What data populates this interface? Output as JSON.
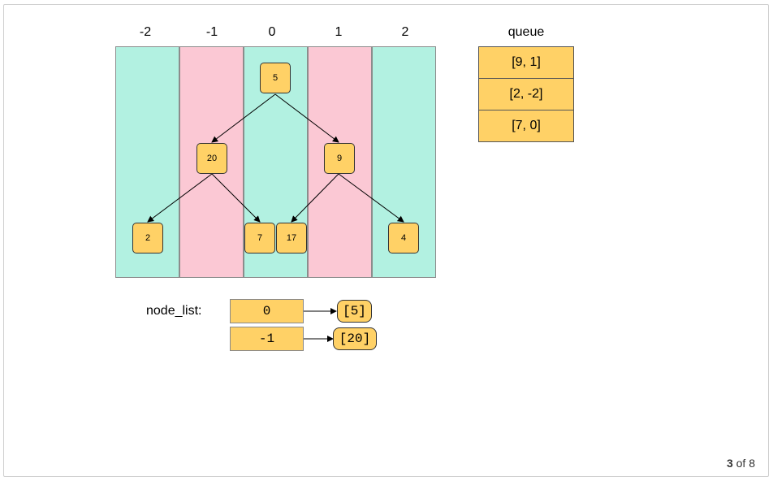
{
  "columns": [
    "-2",
    "-1",
    "0",
    "1",
    "2"
  ],
  "colors": {
    "band_green": "#b2f1e1",
    "band_pink": "#fbc8d4",
    "node_fill": "#ffd166"
  },
  "tree": {
    "nodes": {
      "root": "5",
      "left": "20",
      "right": "9",
      "left_left": "2",
      "left_right": "7",
      "right_left": "17",
      "right_right": "4"
    }
  },
  "queue": {
    "title": "queue",
    "items": [
      "[9, 1]",
      "[2, -2]",
      "[7, 0]"
    ]
  },
  "node_list": {
    "label": "node_list:",
    "entries": [
      {
        "key": "0",
        "value": "[5]"
      },
      {
        "key": "-1",
        "value": "[20]"
      }
    ]
  },
  "pager": {
    "current": "3",
    "separator": "of",
    "total": "8"
  }
}
